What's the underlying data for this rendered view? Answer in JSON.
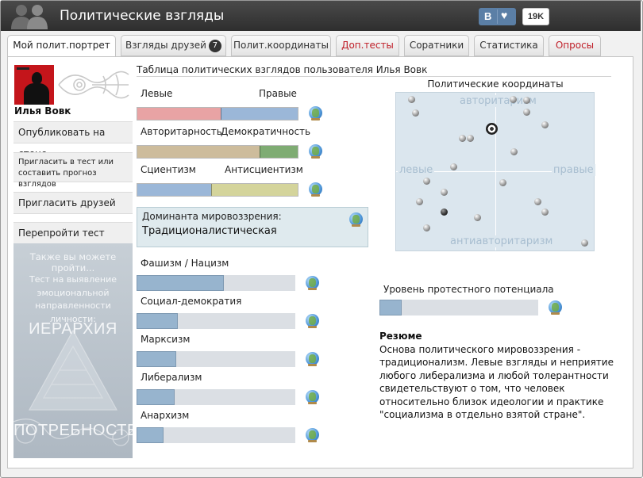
{
  "header": {
    "title": "Политические взгляды",
    "vk_label": "В",
    "like_icon": "heart-icon",
    "likes_count": "19K",
    "colors": {
      "bar": "#333333",
      "vk": "#5b7fa6"
    }
  },
  "tabs": [
    {
      "label": "Мой полит.портрет",
      "active": true
    },
    {
      "label": "Взгляды друзей",
      "count": "7"
    },
    {
      "label": "Полит.координаты"
    },
    {
      "label": "Доп.тесты",
      "highlight": true
    },
    {
      "label": "Соратники"
    },
    {
      "label": "Статистика"
    },
    {
      "label": "Опросы",
      "highlight": true
    }
  ],
  "sidebar": {
    "user_name": "Илья Вовк",
    "buttons": [
      "Опубликовать на стене",
      "Пригласить в тест или составить прогноз взглядов",
      "Пригласить друзей",
      "Перепройти тест"
    ],
    "promo": {
      "line1": "Также вы можете пройти...",
      "line2": "Тест на выявление эмоциональной направленности личности:",
      "line3": "ИЕРАРХИЯ",
      "line4": "ПОТРЕБНОСТЕЙ"
    }
  },
  "main": {
    "table_title": "Таблица политических взглядов пользователя Илья Вовк",
    "scales": [
      {
        "left": "Левые",
        "right": "Правые",
        "left_share": 0.52,
        "left_color": "#e8a3a4",
        "right_color": "#9bb7d8"
      },
      {
        "left": "Авторитарность",
        "right": "Демократичность",
        "left_share": 0.76,
        "left_color": "#cdbc9c",
        "right_color": "#7fac73"
      },
      {
        "left": "Сциентизм",
        "right": "Антисциентизм",
        "left_share": 0.46,
        "left_color": "#9bb7d8",
        "right_color": "#d4d49b"
      }
    ],
    "dominant": {
      "label": "Доминанта мировоззрения:",
      "value": "Традиционалистическая"
    },
    "ideologies": [
      {
        "name": "Фашизм / Нацизм",
        "value": 0.55
      },
      {
        "name": "Социал-демократия",
        "value": 0.26
      },
      {
        "name": "Марксизм",
        "value": 0.25
      },
      {
        "name": "Либерализм",
        "value": 0.24
      },
      {
        "name": "Анархизм",
        "value": 0.17
      }
    ],
    "icon": "globe-icon"
  },
  "coordinates": {
    "title": "Политические координаты",
    "top": "авторитаризм",
    "bottom": "антиавторитаризм",
    "left": "левые",
    "right": "правые",
    "points": [
      {
        "x": -0.91,
        "y": 0.99,
        "dark": false
      },
      {
        "x": 0.19,
        "y": 0.99,
        "dark": false
      },
      {
        "x": 0.34,
        "y": 0.98,
        "dark": false
      },
      {
        "x": -0.87,
        "y": 0.81,
        "dark": false
      },
      {
        "x": 0.34,
        "y": 0.82,
        "dark": false
      },
      {
        "x": 0.54,
        "y": 0.64,
        "dark": false
      },
      {
        "x": -0.36,
        "y": 0.46,
        "dark": false
      },
      {
        "x": -0.27,
        "y": 0.46,
        "dark": false
      },
      {
        "x": 0.2,
        "y": 0.27,
        "dark": false
      },
      {
        "x": -0.45,
        "y": 0.06,
        "dark": false
      },
      {
        "x": -0.75,
        "y": -0.14,
        "dark": false
      },
      {
        "x": 0.08,
        "y": -0.16,
        "dark": false
      },
      {
        "x": -0.56,
        "y": -0.29,
        "dark": false
      },
      {
        "x": -0.82,
        "y": -0.42,
        "dark": false
      },
      {
        "x": 0.46,
        "y": -0.42,
        "dark": false
      },
      {
        "x": -0.56,
        "y": -0.57,
        "dark": true
      },
      {
        "x": 0.54,
        "y": -0.57,
        "dark": false
      },
      {
        "x": -0.19,
        "y": -0.64,
        "dark": false
      },
      {
        "x": -0.75,
        "y": -0.79,
        "dark": false
      },
      {
        "x": 0.97,
        "y": -0.99,
        "dark": false
      }
    ],
    "me": {
      "x": -0.04,
      "y": 0.59
    }
  },
  "protest": {
    "label": "Уровень протестного потенциала",
    "value": 0.14
  },
  "resume": {
    "title": "Резюме",
    "text": "Основа политического мировоззрения - традиционализм. Левые взгляды и неприятие любого либерализма и любой толерантности свидетельствуют о том, что человек относительно близок идеологии и практике \"социализма в отдельно взятой стране\"."
  }
}
